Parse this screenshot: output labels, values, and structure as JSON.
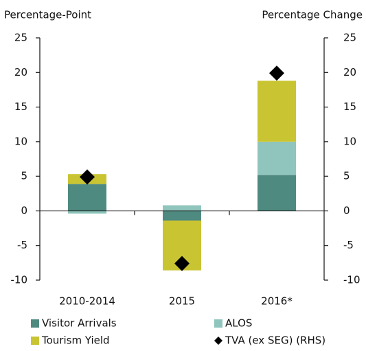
{
  "chart_data": {
    "type": "bar",
    "y_label": "Percentage-Point",
    "y2_label": "Percentage Change",
    "stacked": true,
    "categories": [
      "2010-2014",
      "2015",
      "2016*"
    ],
    "series": [
      {
        "name": "Visitor Arrivals",
        "color": "#4f8a80",
        "values": [
          3.9,
          -1.4,
          5.2
        ]
      },
      {
        "name": "ALOS",
        "color": "#8fc5bc",
        "values": [
          -0.4,
          0.8,
          4.8
        ]
      },
      {
        "name": "Tourism Yield",
        "color": "#c9c432",
        "values": [
          1.4,
          -7.2,
          8.8
        ]
      },
      {
        "name": "TVA (ex SEG) (RHS)",
        "type": "scatter",
        "marker": "diamond",
        "color": "#000000",
        "axis": "y2",
        "values": [
          4.9,
          -7.6,
          19.9
        ]
      }
    ],
    "ylim": [
      -10,
      25
    ],
    "yticks": [
      -10,
      -5,
      0,
      5,
      10,
      15,
      20,
      25
    ],
    "y2lim": [
      -10,
      25
    ],
    "y2ticks": [
      -10,
      -5,
      0,
      5,
      10,
      15,
      20,
      25
    ]
  }
}
